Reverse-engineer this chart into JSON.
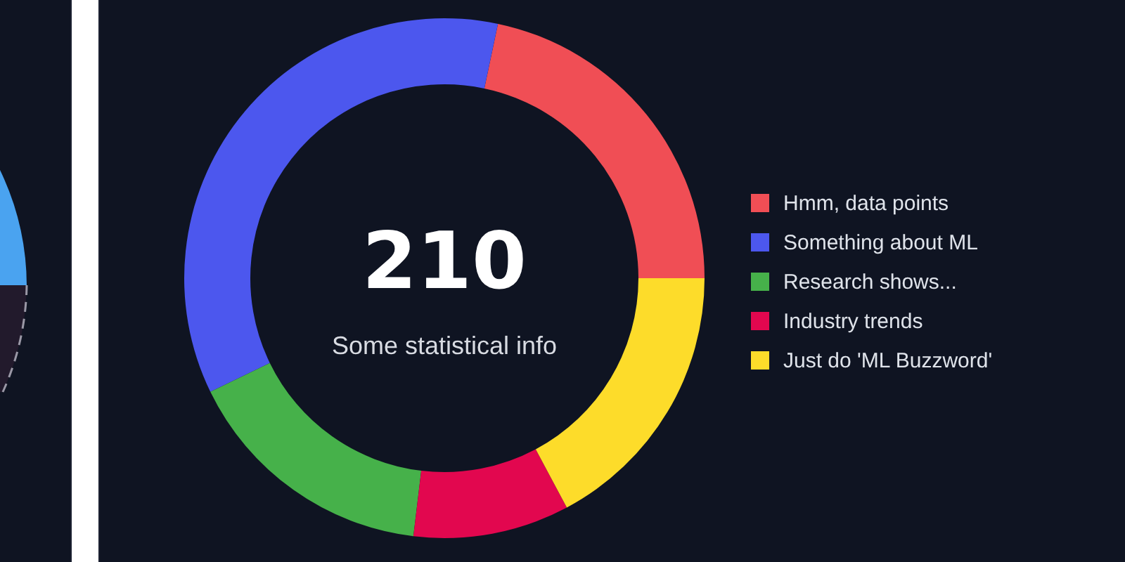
{
  "chart_data": {
    "type": "donut",
    "categories": [
      "Hmm, data points",
      "Something about ML",
      "Research shows...",
      "Industry trends",
      "Just do 'ML Buzzword'"
    ],
    "values": [
      21.7,
      35.5,
      15.9,
      9.7,
      17.2
    ],
    "colors": [
      "#f04e55",
      "#4c57ee",
      "#46b14a",
      "#e2074f",
      "#fddc2a"
    ],
    "annotations": [
      "210",
      "Some statistical info"
    ],
    "legend": "right"
  }
}
